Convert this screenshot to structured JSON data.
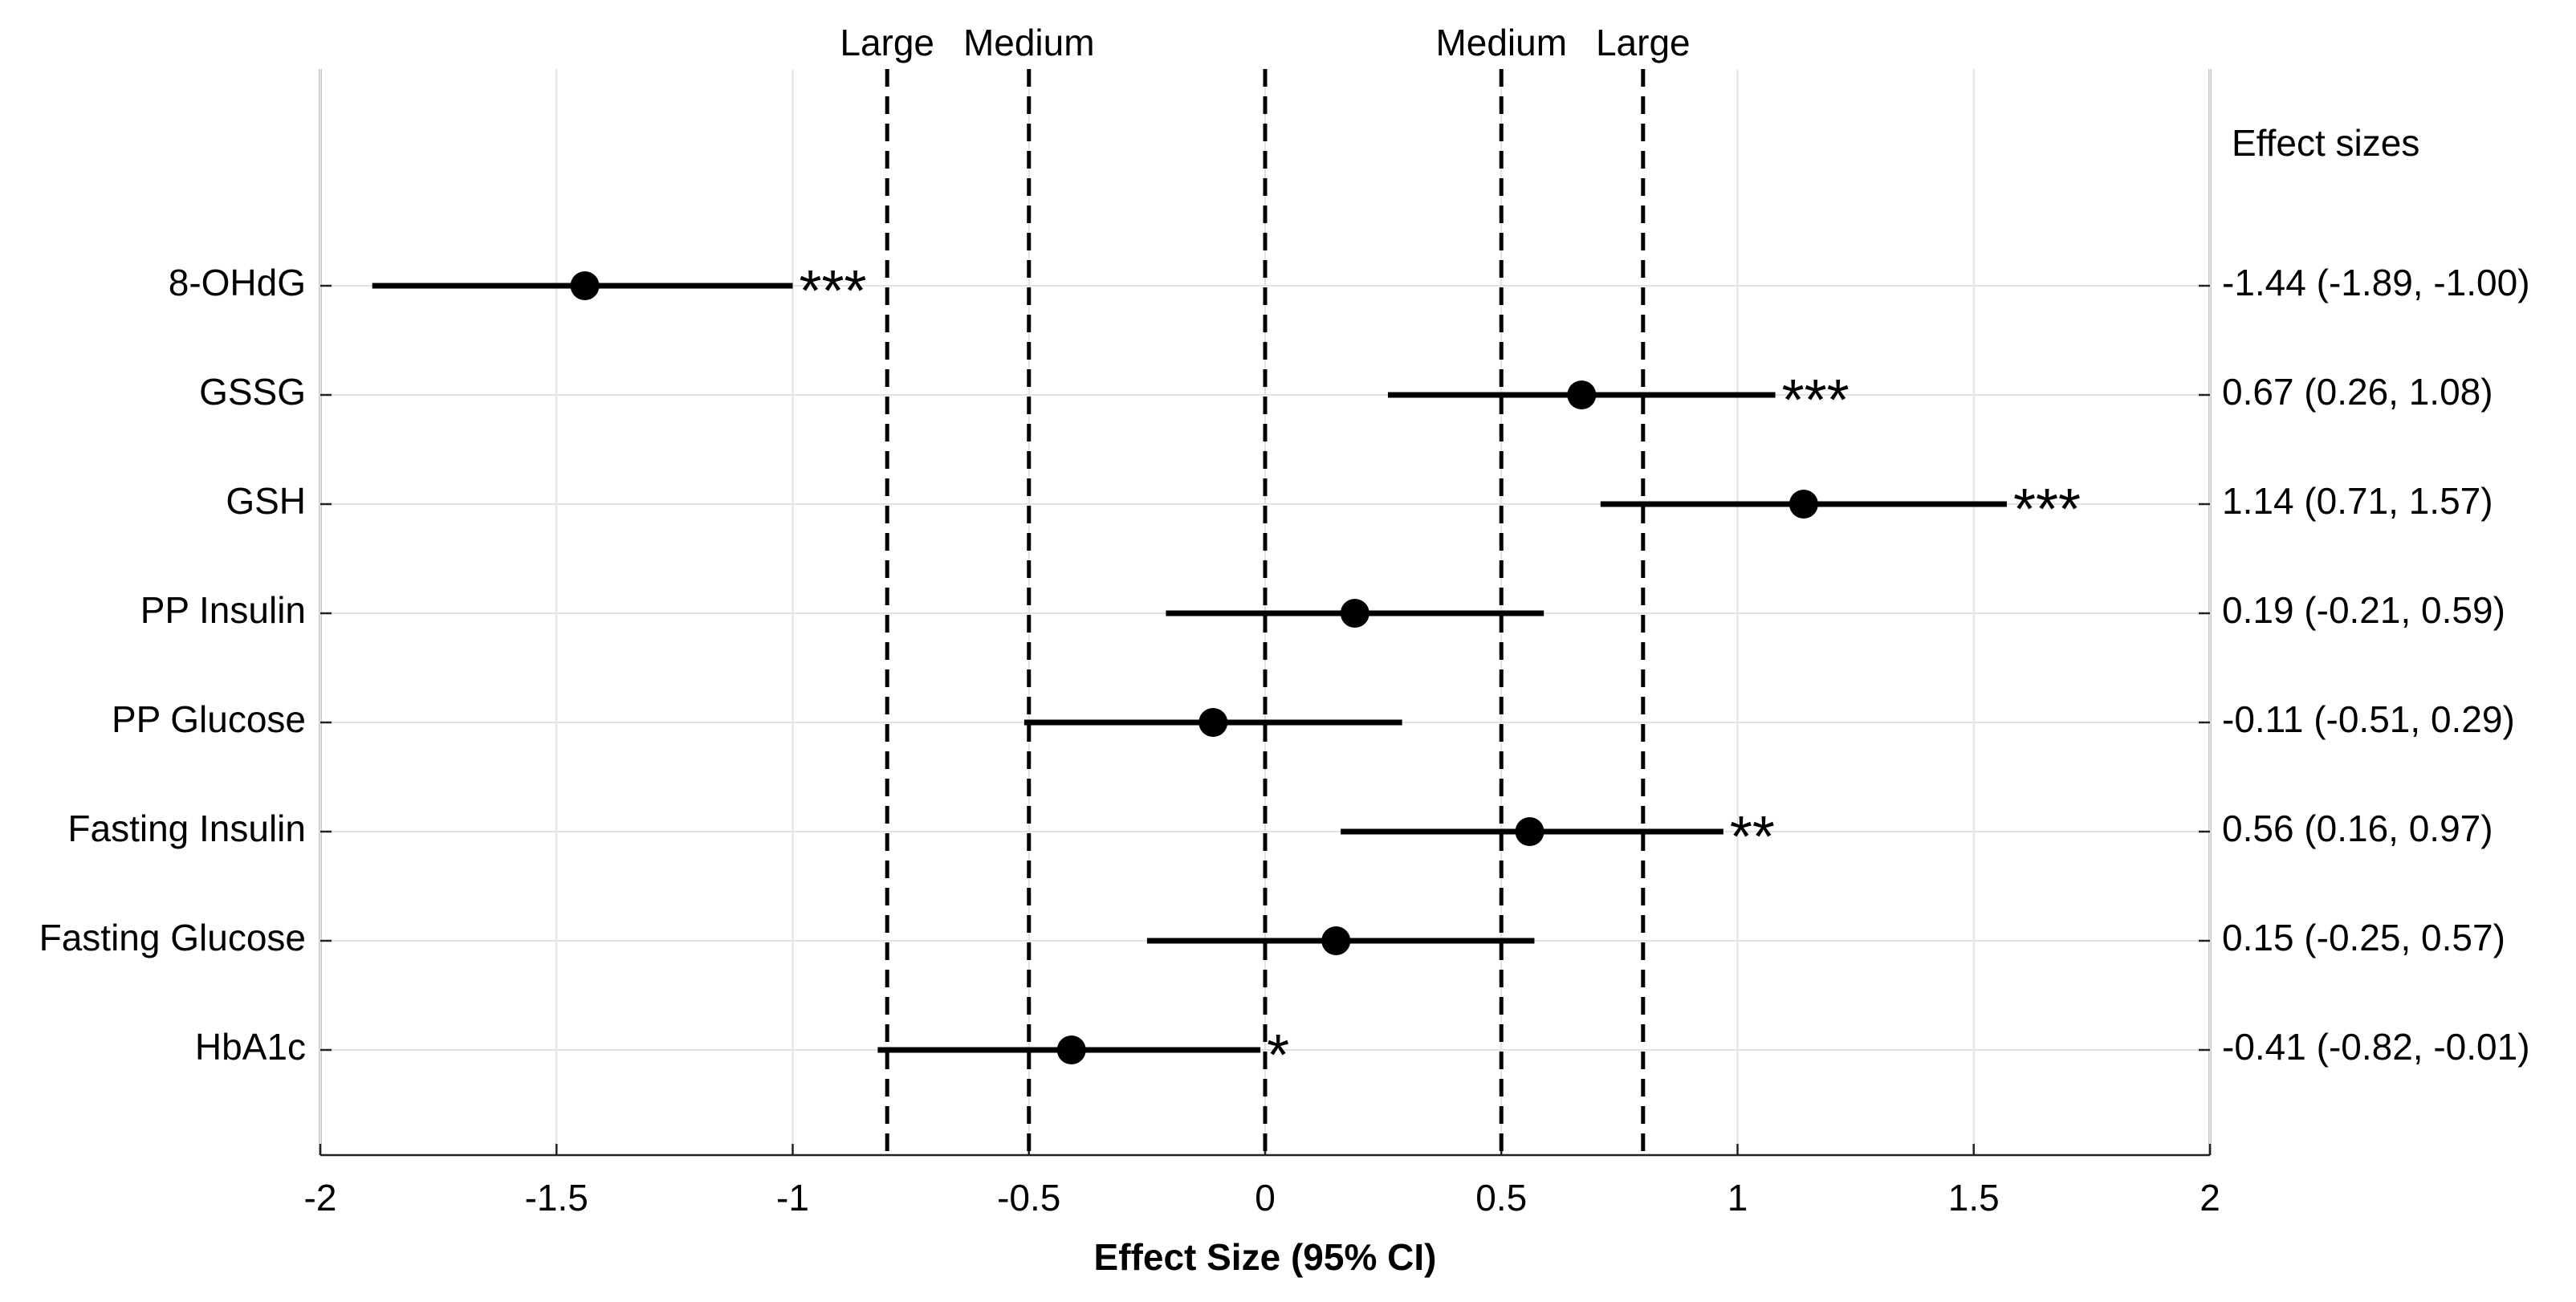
{
  "chart_data": {
    "type": "forest",
    "categories": [
      "8-OHdG",
      "GSSG",
      "GSH",
      "PP Insulin",
      "PP Glucose",
      "Fasting Insulin",
      "Fasting Glucose",
      "HbA1c"
    ],
    "values": [
      -1.44,
      0.67,
      1.14,
      0.19,
      -0.11,
      0.56,
      0.15,
      -0.41
    ],
    "lower": [
      -1.89,
      0.26,
      0.71,
      -0.21,
      -0.51,
      0.16,
      -0.25,
      -0.82
    ],
    "upper": [
      -1.0,
      1.08,
      1.57,
      0.59,
      0.29,
      0.97,
      0.57,
      -0.01
    ],
    "value_labels": [
      "-1.44 (-1.89, -1.00)",
      "0.67 (0.26, 1.08)",
      "1.14 (0.71, 1.57)",
      "0.19 (-0.21, 0.59)",
      "-0.11 (-0.51, 0.29)",
      "0.56 (0.16, 0.97)",
      "0.15 (-0.25, 0.57)",
      "-0.41 (-0.82, -0.01)"
    ],
    "significance": [
      "***",
      "***",
      "***",
      null,
      null,
      "**",
      null,
      "*"
    ],
    "value_labels_title": "Effect sizes",
    "reference_lines": [
      {
        "value": -0.8,
        "label": "Large"
      },
      {
        "value": -0.5,
        "label": "Medium"
      },
      {
        "value": 0
      },
      {
        "value": 0.5,
        "label": "Medium"
      },
      {
        "value": 0.8,
        "label": "Large"
      }
    ],
    "xlabel": "Effect Size (95% CI)",
    "xlim": [
      -2,
      2
    ],
    "xticks": [
      -2,
      -1.5,
      -1,
      -0.5,
      0,
      0.5,
      1,
      1.5,
      2
    ],
    "grid": true,
    "color": "#000000"
  }
}
